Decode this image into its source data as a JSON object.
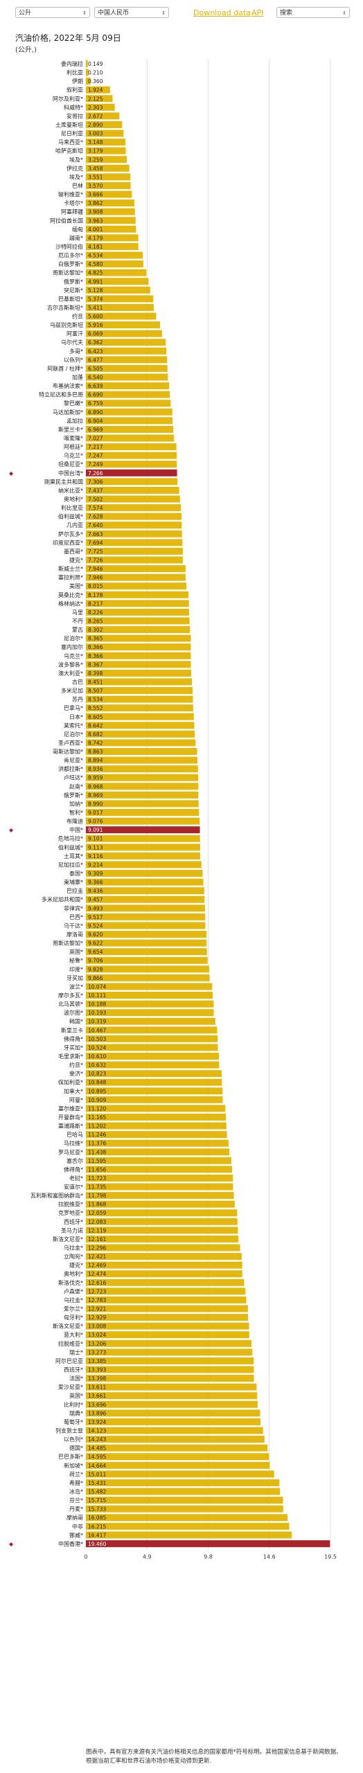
{
  "controls": {
    "unit_value": "公升",
    "currency_value": "中国人民币",
    "download_label": "Download data",
    "api_label": "API",
    "search_placeholder": "搜索"
  },
  "title": "汽油价格, 2022年 5月 09日",
  "subtitle": "(公升,)",
  "note": "图表中，具有官方来源有关汽油价格相关信息的国家都用*符号标明。其他国家信息基于新闻数据、根据当前汇率和世界石油市场价格变动得到更新.",
  "colors": {
    "bar": "#e3b80f",
    "highlight": "#a8262b",
    "text": "#222222"
  },
  "chart_data": {
    "type": "bar",
    "orientation": "horizontal",
    "xlim": [
      0,
      19.5
    ],
    "xticks": [
      "0",
      "4.9",
      "9.8",
      "14.6",
      "19.5"
    ],
    "grid": true,
    "highlighted": [
      "中国台湾*",
      "中国*",
      "中国香港*"
    ],
    "categories": [
      "委内瑞拉",
      "利比亚",
      "伊朗",
      "叙利亚",
      "阿尔及利亚*",
      "科威特*",
      "安哥拉",
      "土库曼斯坦",
      "尼日利亚",
      "马来西亚*",
      "哈萨克斯坦",
      "埃及*",
      "伊拉克",
      "埃及*",
      "巴林",
      "玻利维亚*",
      "卡塔尔*",
      "阿塞拜疆",
      "阿拉伯酋长国",
      "缅甸",
      "越南*",
      "沙特阿拉伯",
      "厄瓜多尔*",
      "白俄罗斯*",
      "哥斯达黎加*",
      "俄罗斯*",
      "突尼斯*",
      "巴基斯坦*",
      "吉尔吉斯斯坦*",
      "约旦",
      "乌兹别克斯坦",
      "阿富汗",
      "乌尔代夫",
      "多哥*",
      "以色列*",
      "阿联酋 / 杜拜*",
      "加蓬",
      "布基纳法索*",
      "特立尼达和多巴哥",
      "黎巴嫩*",
      "马达加斯加*",
      "孟加拉",
      "斯里兰卡*",
      "喀麦隆*",
      "阿根廷*",
      "乌克兰*",
      "坦桑尼亚*",
      "中国台湾*",
      "刚果民主共和国",
      "纳米比亚*",
      "奥地利*",
      "利比里亚",
      "伯利兹城*",
      "几内亚",
      "萨尔瓦多*",
      "印度尼西亚*",
      "墨西哥*",
      "捷克*",
      "斯威士兰*",
      "塞拉利昂*",
      "美国*",
      "莫桑比克*",
      "格林纳达*",
      "马里",
      "不丹",
      "蒙古",
      "尼泊尔*",
      "塞内加尔",
      "乌克兰*",
      "波多黎各*",
      "澳大利亚*",
      "古巴",
      "多米尼加",
      "苏丹",
      "巴拿马*",
      "日本*",
      "莱索托*",
      "尼泊尔*",
      "圣卢西亚*",
      "哥斯达黎加*",
      "肯尼亚*",
      "洪都拉斯*",
      "卢旺达*",
      "赵南*",
      "俄罗斯*",
      "加纳*",
      "智利*",
      "布隆迪",
      "中国*",
      "危地马拉*",
      "伯利兹城*",
      "土耳其*",
      "尼加拉瓜*",
      "泰国*",
      "柬埔寨*",
      "巴拉圭",
      "多米尼加共和国*",
      "菲律宾*",
      "巴西*",
      "乌干达*",
      "摩洛哥",
      "哥斯达黎加*",
      "英国*",
      "秘鲁*",
      "印度*",
      "牙买加",
      "波兰*",
      "摩尔多瓦*",
      "北马其顿*",
      "波尔图*",
      "韩国*",
      "斯里兰卡",
      "佛得角*",
      "牙买加*",
      "毛里求斯*",
      "约旦*",
      "斐济*",
      "保加利亚*",
      "加拿大*",
      "阿曼*",
      "塞尔维亚*",
      "开曼群岛*",
      "塞浦路斯*",
      "巴哈马",
      "马拉维*",
      "罗马尼亚*",
      "塞舌尔",
      "佛得角*",
      "老挝*",
      "安道尔*",
      "瓦利斯和富图纳群岛*",
      "拉脱维亚*",
      "克罗地亚*",
      "西班牙*",
      "圣马力诺",
      "斯洛文尼亚*",
      "乌拉圭*",
      "立陶宛*",
      "捷克*",
      "奥地利*",
      "斯洛伐克*",
      "卢森堡*",
      "乌拉圭*",
      "爱尔兰*",
      "匈牙利*",
      "斯洛文尼亚*",
      "意大利*",
      "拉脱维亚*",
      "瑞士*",
      "阿尔巴尼亚",
      "西班牙*",
      "法国*",
      "爱沙尼亚*",
      "英国*",
      "比利时*",
      "瑞典*",
      "葡萄牙*",
      "列支敦士登",
      "以色列*",
      "德国*",
      "巴巴多斯*",
      "新加坡*",
      "荷兰*",
      "希腊*",
      "冰岛*",
      "芬兰*",
      "丹麦*",
      "摩纳哥",
      "中非",
      "挪威*",
      "中国香港*"
    ],
    "values": [
      0.149,
      0.21,
      0.36,
      1.924,
      2.125,
      2.303,
      2.672,
      2.89,
      3.003,
      3.148,
      3.179,
      3.259,
      3.458,
      3.551,
      3.57,
      3.666,
      3.862,
      3.908,
      3.963,
      4.001,
      4.179,
      4.181,
      4.534,
      4.58,
      4.825,
      4.991,
      5.128,
      5.374,
      5.411,
      5.6,
      5.916,
      6.069,
      6.362,
      6.423,
      6.477,
      6.505,
      6.54,
      6.639,
      6.69,
      6.759,
      6.89,
      6.904,
      6.969,
      7.027,
      7.217,
      7.247,
      7.249,
      7.266,
      7.306,
      7.437,
      7.502,
      7.574,
      7.628,
      7.64,
      7.663,
      7.694,
      7.725,
      7.726,
      7.946,
      7.946,
      8.015,
      8.178,
      8.217,
      8.226,
      8.265,
      8.302,
      8.365,
      8.366,
      8.366,
      8.367,
      8.398,
      8.451,
      8.507,
      8.534,
      8.552,
      8.605,
      8.642,
      8.682,
      8.742,
      8.863,
      8.894,
      8.936,
      8.959,
      8.968,
      8.969,
      8.99,
      9.017,
      9.076,
      9.091,
      9.101,
      9.113,
      9.116,
      9.214,
      9.309,
      9.366,
      9.436,
      9.457,
      9.493,
      9.517,
      9.524,
      9.62,
      9.622,
      9.654,
      9.706,
      9.828,
      9.866,
      10.074,
      10.111,
      10.188,
      10.193,
      10.319,
      10.467,
      10.503,
      10.524,
      10.61,
      10.632,
      10.823,
      10.848,
      10.895,
      10.909,
      11.12,
      11.165,
      11.202,
      11.246,
      11.376,
      11.438,
      11.595,
      11.656,
      11.723,
      11.735,
      11.798,
      11.868,
      12.059,
      12.083,
      12.119,
      12.161,
      12.296,
      12.421,
      12.469,
      12.474,
      12.616,
      12.723,
      12.783,
      12.921,
      12.929,
      13.008,
      13.024,
      13.206,
      13.273,
      13.385,
      13.393,
      13.398,
      13.611,
      13.661,
      13.696,
      13.896,
      13.924,
      14.123,
      14.243,
      14.485,
      14.595,
      14.664,
      15.011,
      15.431,
      15.482,
      15.715,
      15.733,
      16.085,
      16.215,
      16.417,
      19.46
    ]
  }
}
